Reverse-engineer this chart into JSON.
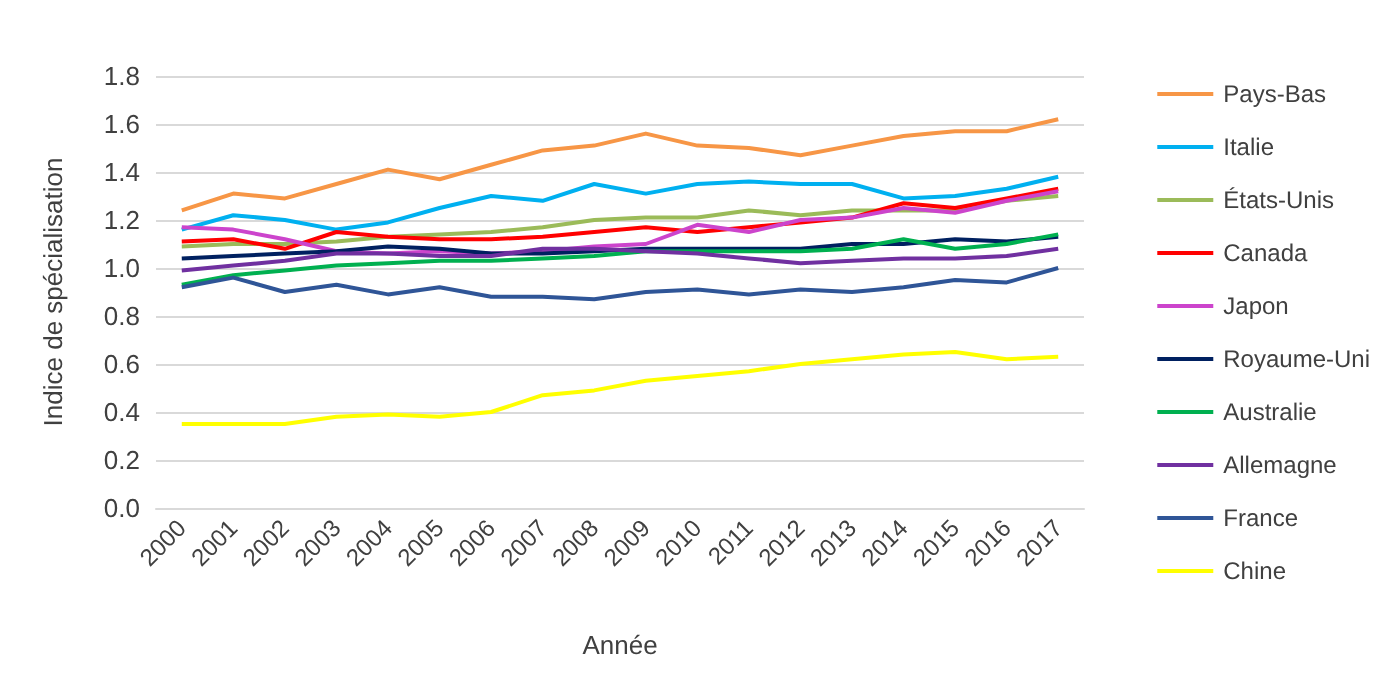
{
  "chart_data": {
    "type": "line",
    "xlabel": "Année",
    "ylabel": "Indice de spécialisation",
    "categories": [
      "2000",
      "2001",
      "2002",
      "2003",
      "2004",
      "2005",
      "2006",
      "2007",
      "2008",
      "2009",
      "2010",
      "2011",
      "2012",
      "2013",
      "2014",
      "2015",
      "2016",
      "2017"
    ],
    "ylim": [
      0,
      1.8
    ],
    "yticks": [
      {
        "value": 0,
        "label": "0.0"
      },
      0.2,
      0.4,
      0.6,
      0.8,
      {
        "value": 1,
        "label": "1.0"
      },
      1.2,
      1.4,
      1.6,
      1.8
    ],
    "grid": "y",
    "legend": "right",
    "marker": "none",
    "line_style": "solid",
    "series": [
      {
        "name": "Pays-Bas",
        "color": "#f79646",
        "values": [
          1.24,
          1.31,
          1.29,
          1.35,
          1.41,
          1.37,
          1.43,
          1.49,
          1.51,
          1.56,
          1.51,
          1.5,
          1.47,
          1.51,
          1.55,
          1.57,
          1.57,
          1.62
        ]
      },
      {
        "name": "Italie",
        "color": "#00b0f0",
        "values": [
          1.16,
          1.22,
          1.2,
          1.16,
          1.19,
          1.25,
          1.3,
          1.28,
          1.35,
          1.31,
          1.35,
          1.36,
          1.35,
          1.35,
          1.29,
          1.3,
          1.33,
          1.38
        ]
      },
      {
        "name": "États-Unis",
        "color": "#9bbb59",
        "values": [
          1.09,
          1.1,
          1.1,
          1.11,
          1.13,
          1.14,
          1.15,
          1.17,
          1.2,
          1.21,
          1.21,
          1.24,
          1.22,
          1.24,
          1.24,
          1.24,
          1.28,
          1.3
        ]
      },
      {
        "name": "Canada",
        "color": "#ff0000",
        "values": [
          1.11,
          1.12,
          1.08,
          1.15,
          1.13,
          1.12,
          1.12,
          1.13,
          1.15,
          1.17,
          1.15,
          1.17,
          1.19,
          1.21,
          1.27,
          1.25,
          1.29,
          1.33
        ]
      },
      {
        "name": "Japon",
        "color": "#cc44cc",
        "values": [
          1.17,
          1.16,
          1.12,
          1.07,
          1.06,
          1.07,
          1.06,
          1.07,
          1.09,
          1.1,
          1.18,
          1.15,
          1.2,
          1.21,
          1.25,
          1.23,
          1.28,
          1.32
        ]
      },
      {
        "name": "Royaume-Uni",
        "color": "#002060",
        "values": [
          1.04,
          1.05,
          1.06,
          1.07,
          1.09,
          1.08,
          1.06,
          1.06,
          1.07,
          1.08,
          1.08,
          1.08,
          1.08,
          1.1,
          1.1,
          1.12,
          1.11,
          1.13
        ]
      },
      {
        "name": "Australie",
        "color": "#00b050",
        "values": [
          0.93,
          0.97,
          0.99,
          1.01,
          1.02,
          1.03,
          1.03,
          1.04,
          1.05,
          1.07,
          1.07,
          1.07,
          1.07,
          1.08,
          1.12,
          1.08,
          1.1,
          1.14
        ]
      },
      {
        "name": "Allemagne",
        "color": "#7030a0",
        "values": [
          0.99,
          1.01,
          1.03,
          1.06,
          1.06,
          1.05,
          1.05,
          1.08,
          1.08,
          1.07,
          1.06,
          1.04,
          1.02,
          1.03,
          1.04,
          1.04,
          1.05,
          1.08
        ]
      },
      {
        "name": "France",
        "color": "#2f5597",
        "values": [
          0.92,
          0.96,
          0.9,
          0.93,
          0.89,
          0.92,
          0.88,
          0.88,
          0.87,
          0.9,
          0.91,
          0.89,
          0.91,
          0.9,
          0.92,
          0.95,
          0.94,
          1.0
        ]
      },
      {
        "name": "Chine",
        "color": "#ffff00",
        "values": [
          0.35,
          0.35,
          0.35,
          0.38,
          0.39,
          0.38,
          0.4,
          0.47,
          0.49,
          0.53,
          0.55,
          0.57,
          0.6,
          0.62,
          0.64,
          0.65,
          0.62,
          0.63
        ]
      }
    ]
  }
}
